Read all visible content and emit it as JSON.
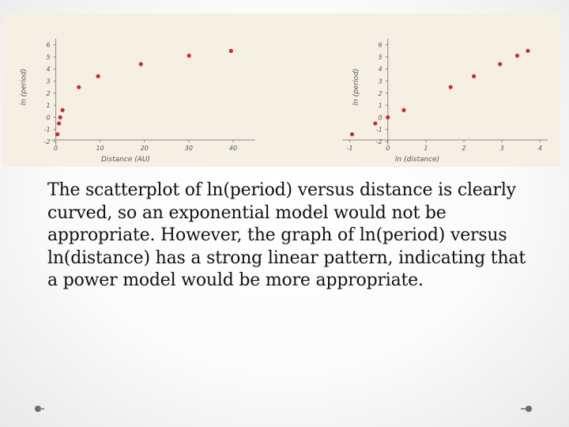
{
  "caption": "The scatterplot of ln(period) versus distance is clearly curved, so an exponential model would not be appropriate. However, the graph of ln(period) versus ln(distance) has a strong linear pattern, indicating that a power model would be more appropriate.",
  "colors": {
    "point": "#c62d2d",
    "panel_background": "#f6f0e4",
    "axis": "#8a8a8a"
  },
  "chart_data": [
    {
      "type": "scatter",
      "title": "",
      "xlabel": "Distance (AU)",
      "ylabel": "ln (period)",
      "xlim": [
        -1,
        45
      ],
      "ylim": [
        -2,
        6.5
      ],
      "x_ticks": [
        "0",
        "10",
        "20",
        "30",
        "40"
      ],
      "y_ticks": [
        "-2",
        "-1",
        "0",
        "1",
        "2",
        "3",
        "4",
        "5",
        "6"
      ],
      "grid": false,
      "series": [
        {
          "x": [
            0.39,
            0.72,
            1.0,
            1.52,
            5.2,
            9.54,
            19.19,
            30.06,
            39.53
          ],
          "y": [
            -1.4,
            -0.5,
            0.0,
            0.6,
            2.5,
            3.4,
            4.4,
            5.1,
            5.5
          ]
        }
      ]
    },
    {
      "type": "scatter",
      "title": "",
      "xlabel": "ln (distance)",
      "ylabel": "ln (period)",
      "xlim": [
        -1.2,
        4.2
      ],
      "ylim": [
        -2,
        6.5
      ],
      "x_ticks": [
        "-1",
        "0",
        "1",
        "2",
        "3",
        "4"
      ],
      "y_ticks": [
        "-2",
        "-1",
        "0",
        "1",
        "2",
        "3",
        "4",
        "5",
        "6"
      ],
      "grid": false,
      "series": [
        {
          "x": [
            -0.94,
            -0.33,
            0.0,
            0.42,
            1.65,
            2.26,
            2.95,
            3.4,
            3.68
          ],
          "y": [
            -1.4,
            -0.5,
            0.0,
            0.6,
            2.5,
            3.4,
            4.4,
            5.1,
            5.5
          ]
        }
      ]
    }
  ]
}
